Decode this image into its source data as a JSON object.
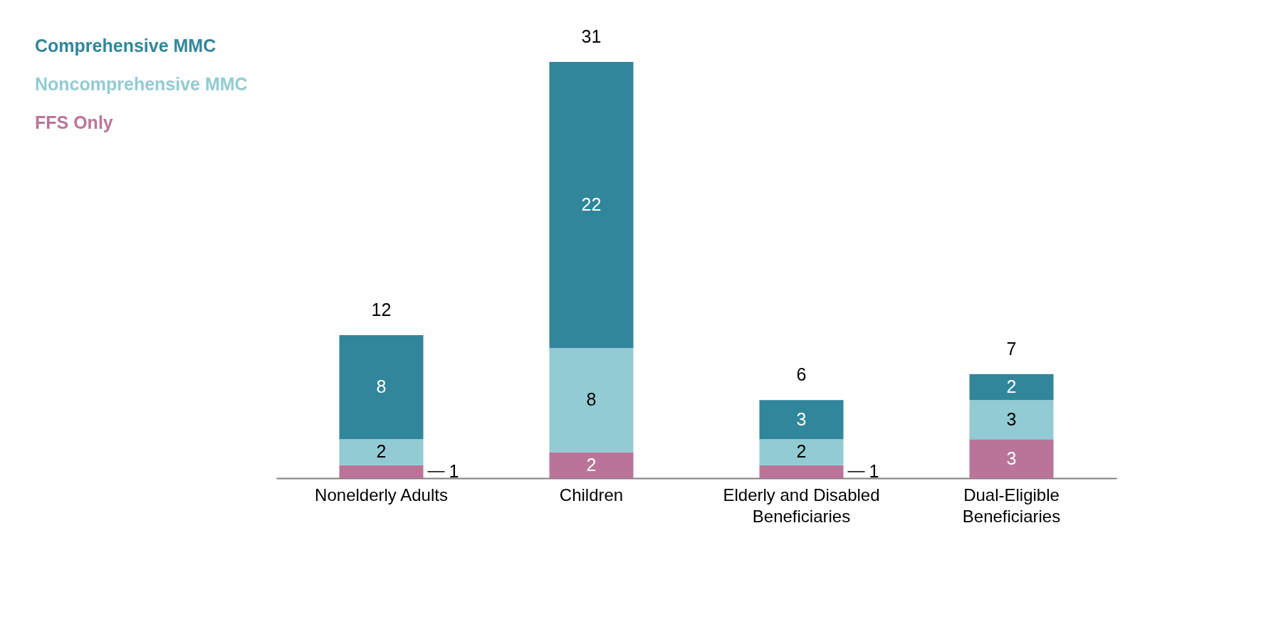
{
  "chart_data": {
    "type": "bar",
    "stacked": true,
    "data_labels": true,
    "legend": "left",
    "categories": [
      "Nonelderly Adults",
      "Children",
      "Elderly and Disabled Beneficiaries",
      "Dual-Eligible Beneficiaries"
    ],
    "series": [
      {
        "name": "FFS Only",
        "color": "#bb7499",
        "values": [
          1,
          2,
          1,
          3
        ]
      },
      {
        "name": "Noncomprehensive MMC",
        "color": "#92cbd3",
        "values": [
          2,
          8,
          2,
          3
        ]
      },
      {
        "name": "Comprehensive MMC",
        "color": "#31869b",
        "values": [
          8,
          22,
          3,
          2
        ]
      }
    ],
    "totals": [
      "12",
      "31",
      "6",
      "7"
    ]
  }
}
